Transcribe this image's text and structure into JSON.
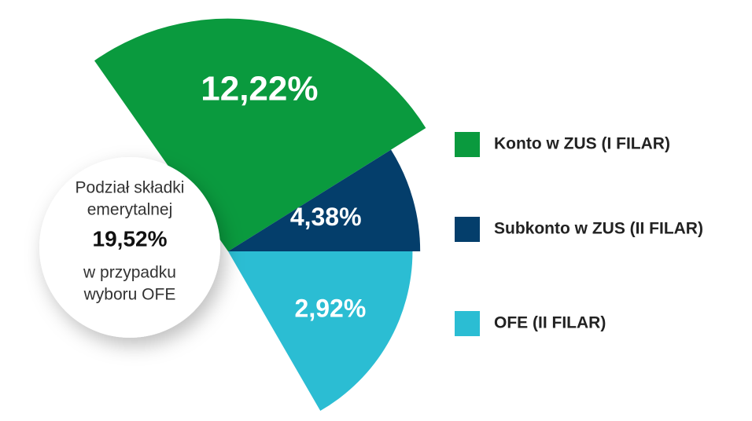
{
  "chart_data": {
    "type": "fan",
    "center_text": [
      "Podział składki",
      "emerytalnej"
    ],
    "total": 19.52,
    "total_label": "19,52%",
    "center_note": [
      "w przypadku",
      "wyboru OFE"
    ],
    "categories": [
      "Konto w ZUS (I FILAR)",
      "Subkonto w ZUS (II FILAR)",
      "OFE (II FILAR)"
    ],
    "values": [
      12.22,
      4.38,
      2.92
    ],
    "value_labels": [
      "12,22%",
      "4,38%",
      "2,92%"
    ],
    "colors": [
      "#0a9a3e",
      "#043e6b",
      "#2bbdd3"
    ]
  }
}
